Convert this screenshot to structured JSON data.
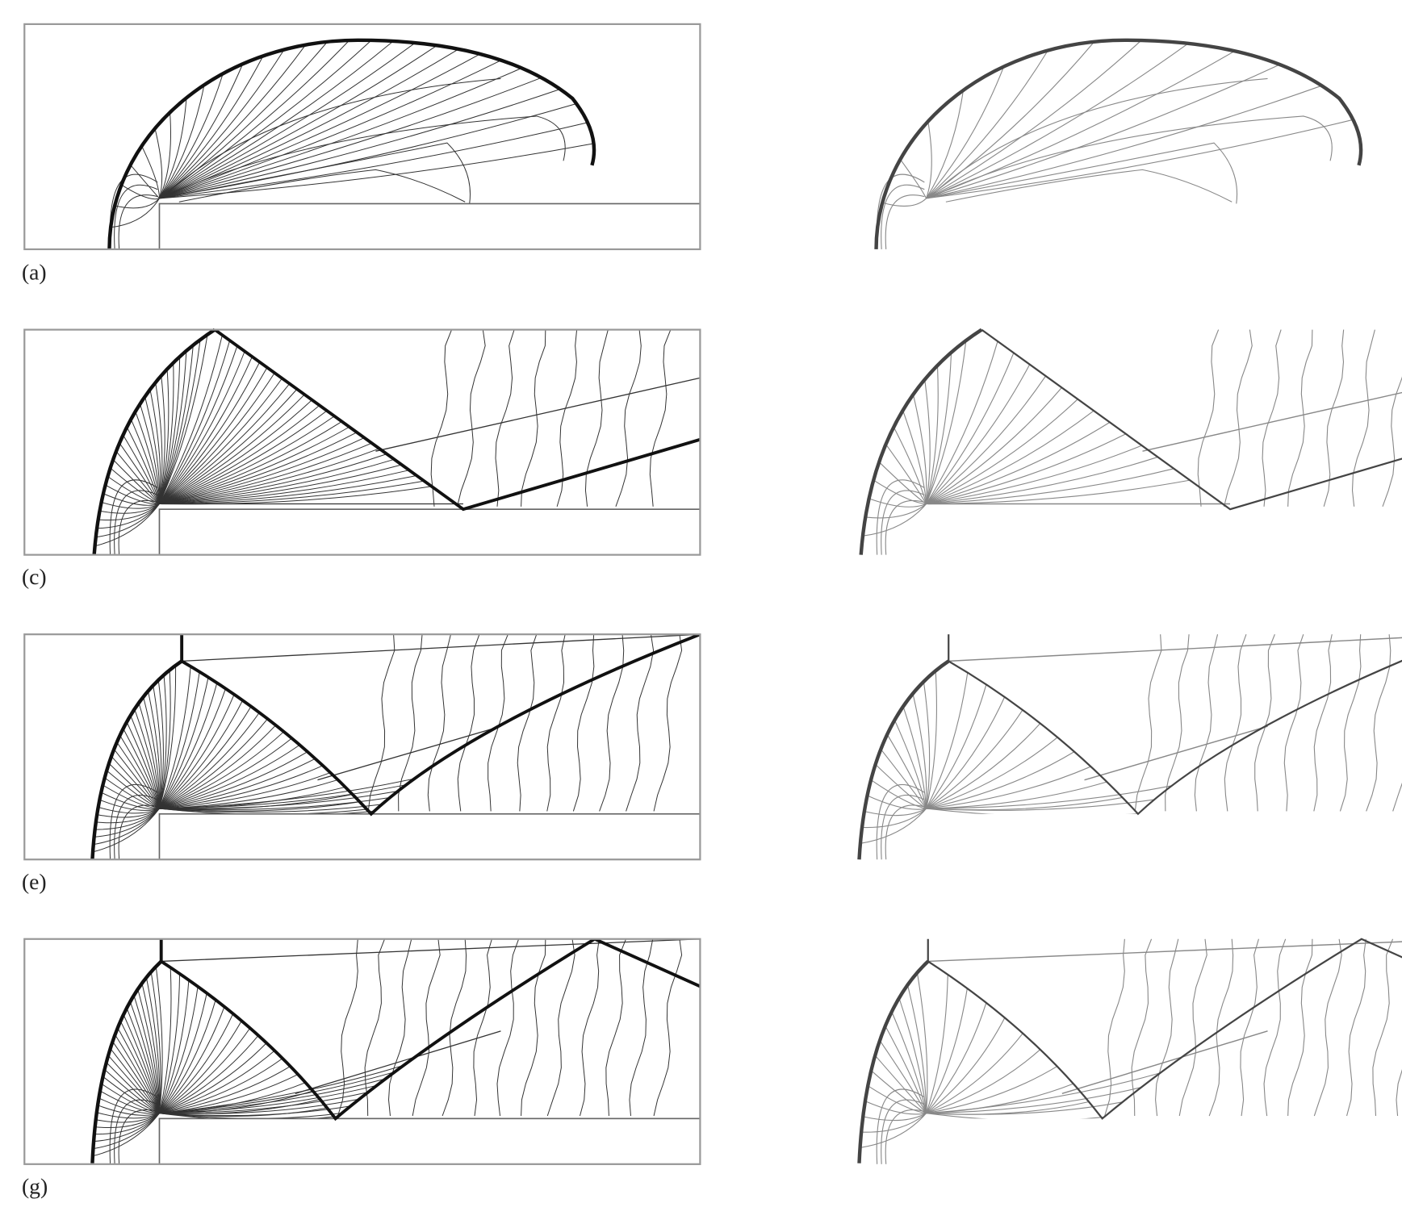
{
  "panels": [
    {
      "label": "(a)"
    },
    {
      "label": "(c)"
    },
    {
      "label": "(e)"
    },
    {
      "label": "(g)"
    }
  ]
}
